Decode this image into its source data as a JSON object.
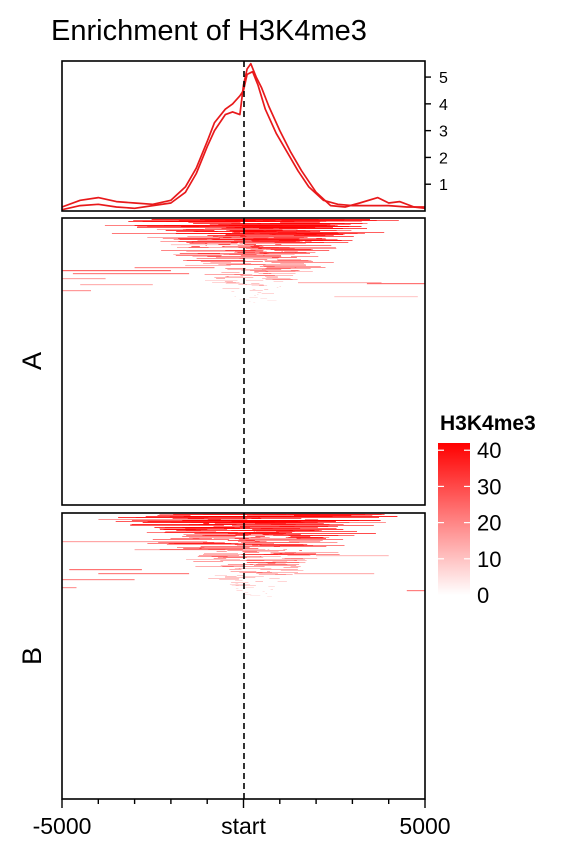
{
  "title": "Enrichment of H3K4me3",
  "chart_data": [
    {
      "type": "line",
      "panel": "profile",
      "x_range": [
        -5000,
        5000
      ],
      "y_ticks": [
        "1",
        "2",
        "3",
        "4",
        "5"
      ],
      "y_tick_values": [
        1,
        2,
        3,
        4,
        5
      ],
      "ylim": [
        0,
        5.6
      ],
      "reference_line": 0,
      "series": [
        {
          "color": "#e8191b",
          "x": [
            -5000,
            -4500,
            -4000,
            -3500,
            -3000,
            -2500,
            -2000,
            -1600,
            -1300,
            -1000,
            -800,
            -500,
            -300,
            -100,
            0,
            100,
            250,
            400,
            600,
            900,
            1200,
            1500,
            1800,
            2200,
            2600,
            3000,
            3500,
            4000,
            4500,
            5000
          ],
          "y": [
            0.15,
            0.4,
            0.5,
            0.35,
            0.3,
            0.25,
            0.4,
            0.9,
            1.6,
            2.6,
            3.3,
            3.8,
            4.0,
            4.3,
            4.5,
            5.1,
            5.2,
            4.7,
            3.8,
            2.9,
            2.2,
            1.5,
            0.9,
            0.4,
            0.25,
            0.2,
            0.2,
            0.2,
            0.15,
            0.15
          ]
        },
        {
          "color": "#e8191b",
          "x": [
            -5000,
            -4500,
            -4000,
            -3500,
            -3000,
            -2500,
            -2000,
            -1600,
            -1300,
            -1000,
            -800,
            -500,
            -300,
            -100,
            0,
            100,
            200,
            350,
            500,
            700,
            1000,
            1300,
            1600,
            2000,
            2400,
            2800,
            3200,
            3700,
            4000,
            4300,
            4700,
            5000
          ],
          "y": [
            0.05,
            0.2,
            0.25,
            0.15,
            0.1,
            0.2,
            0.3,
            0.7,
            1.4,
            2.4,
            3.0,
            3.6,
            3.7,
            3.6,
            4.7,
            5.3,
            5.5,
            5.0,
            4.6,
            3.9,
            3.0,
            2.2,
            1.5,
            0.7,
            0.2,
            0.15,
            0.3,
            0.5,
            0.3,
            0.35,
            0.15,
            0.1
          ]
        }
      ]
    },
    {
      "type": "heatmap",
      "panels": [
        {
          "label": "A",
          "hot_start": 0.08
        },
        {
          "label": "B",
          "hot_start": 0.0
        }
      ],
      "x_ticks": [
        "-5000",
        "start",
        "5000"
      ],
      "x_tick_values": [
        -5000,
        0,
        5000
      ],
      "xlim": [
        -5000,
        5000
      ],
      "legend": {
        "title": "H3K4me3",
        "ticks": [
          "0",
          "10",
          "20",
          "30",
          "40"
        ],
        "tick_values": [
          0,
          10,
          20,
          30,
          40
        ],
        "range": [
          0,
          42
        ],
        "colors": [
          "#ffffff",
          "#ff0000"
        ]
      }
    }
  ]
}
